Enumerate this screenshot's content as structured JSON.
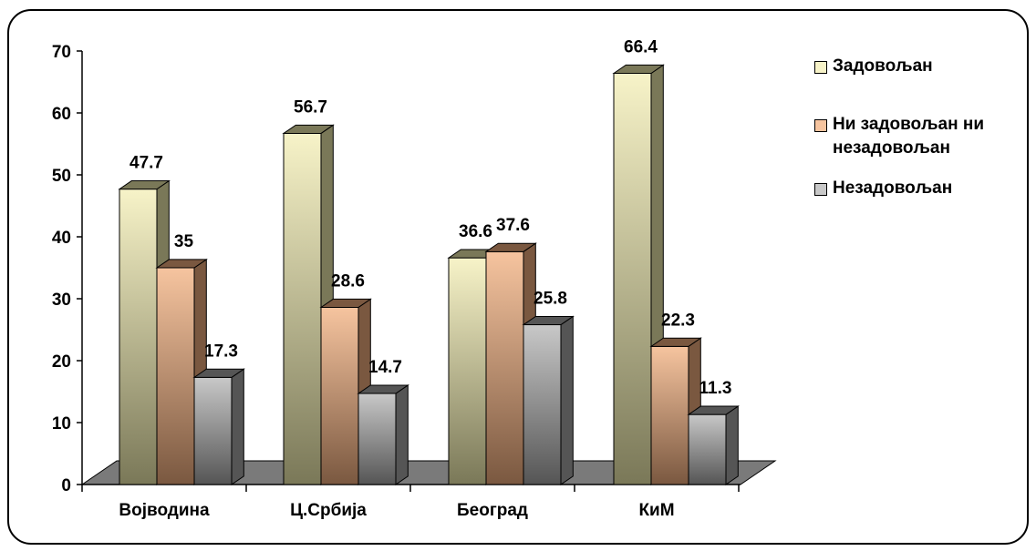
{
  "chart_data": {
    "type": "bar",
    "categories": [
      "Војводина",
      "Ц.Србија",
      "Београд",
      "КиМ"
    ],
    "series": [
      {
        "name": "Задовољан",
        "values": [
          47.7,
          56.7,
          36.6,
          66.4
        ],
        "color": "#f7f3c8",
        "color_dark": "#7a7858"
      },
      {
        "name": "Ни задовољан ни незадовољан",
        "values": [
          35,
          28.6,
          37.6,
          22.3
        ],
        "color": "#f6c49f",
        "color_dark": "#7a5840"
      },
      {
        "name": "Незадовољан",
        "values": [
          17.3,
          14.7,
          25.8,
          11.3
        ],
        "color": "#c8c8c8",
        "color_dark": "#555555"
      }
    ],
    "data_labels": [
      [
        "47.7",
        "35",
        "17.3"
      ],
      [
        "56.7",
        "28.6",
        "14.7"
      ],
      [
        "36.6",
        "37.6",
        "25.8"
      ],
      [
        "66.4",
        "22.3",
        "11.3"
      ]
    ],
    "y_ticks": [
      "0",
      "10",
      "20",
      "30",
      "40",
      "50",
      "60",
      "70"
    ],
    "ylim": [
      0,
      70
    ],
    "legend_position": "right",
    "grid": false
  },
  "legend": {
    "items": [
      {
        "lines": [
          "Задовољан"
        ],
        "color": "#f7f3c8"
      },
      {
        "lines": [
          "Ни задовољан ни",
          "незадовољан"
        ],
        "color": "#f6c49f"
      },
      {
        "lines": [
          "Незадовољан"
        ],
        "color": "#c8c8c8"
      }
    ]
  }
}
